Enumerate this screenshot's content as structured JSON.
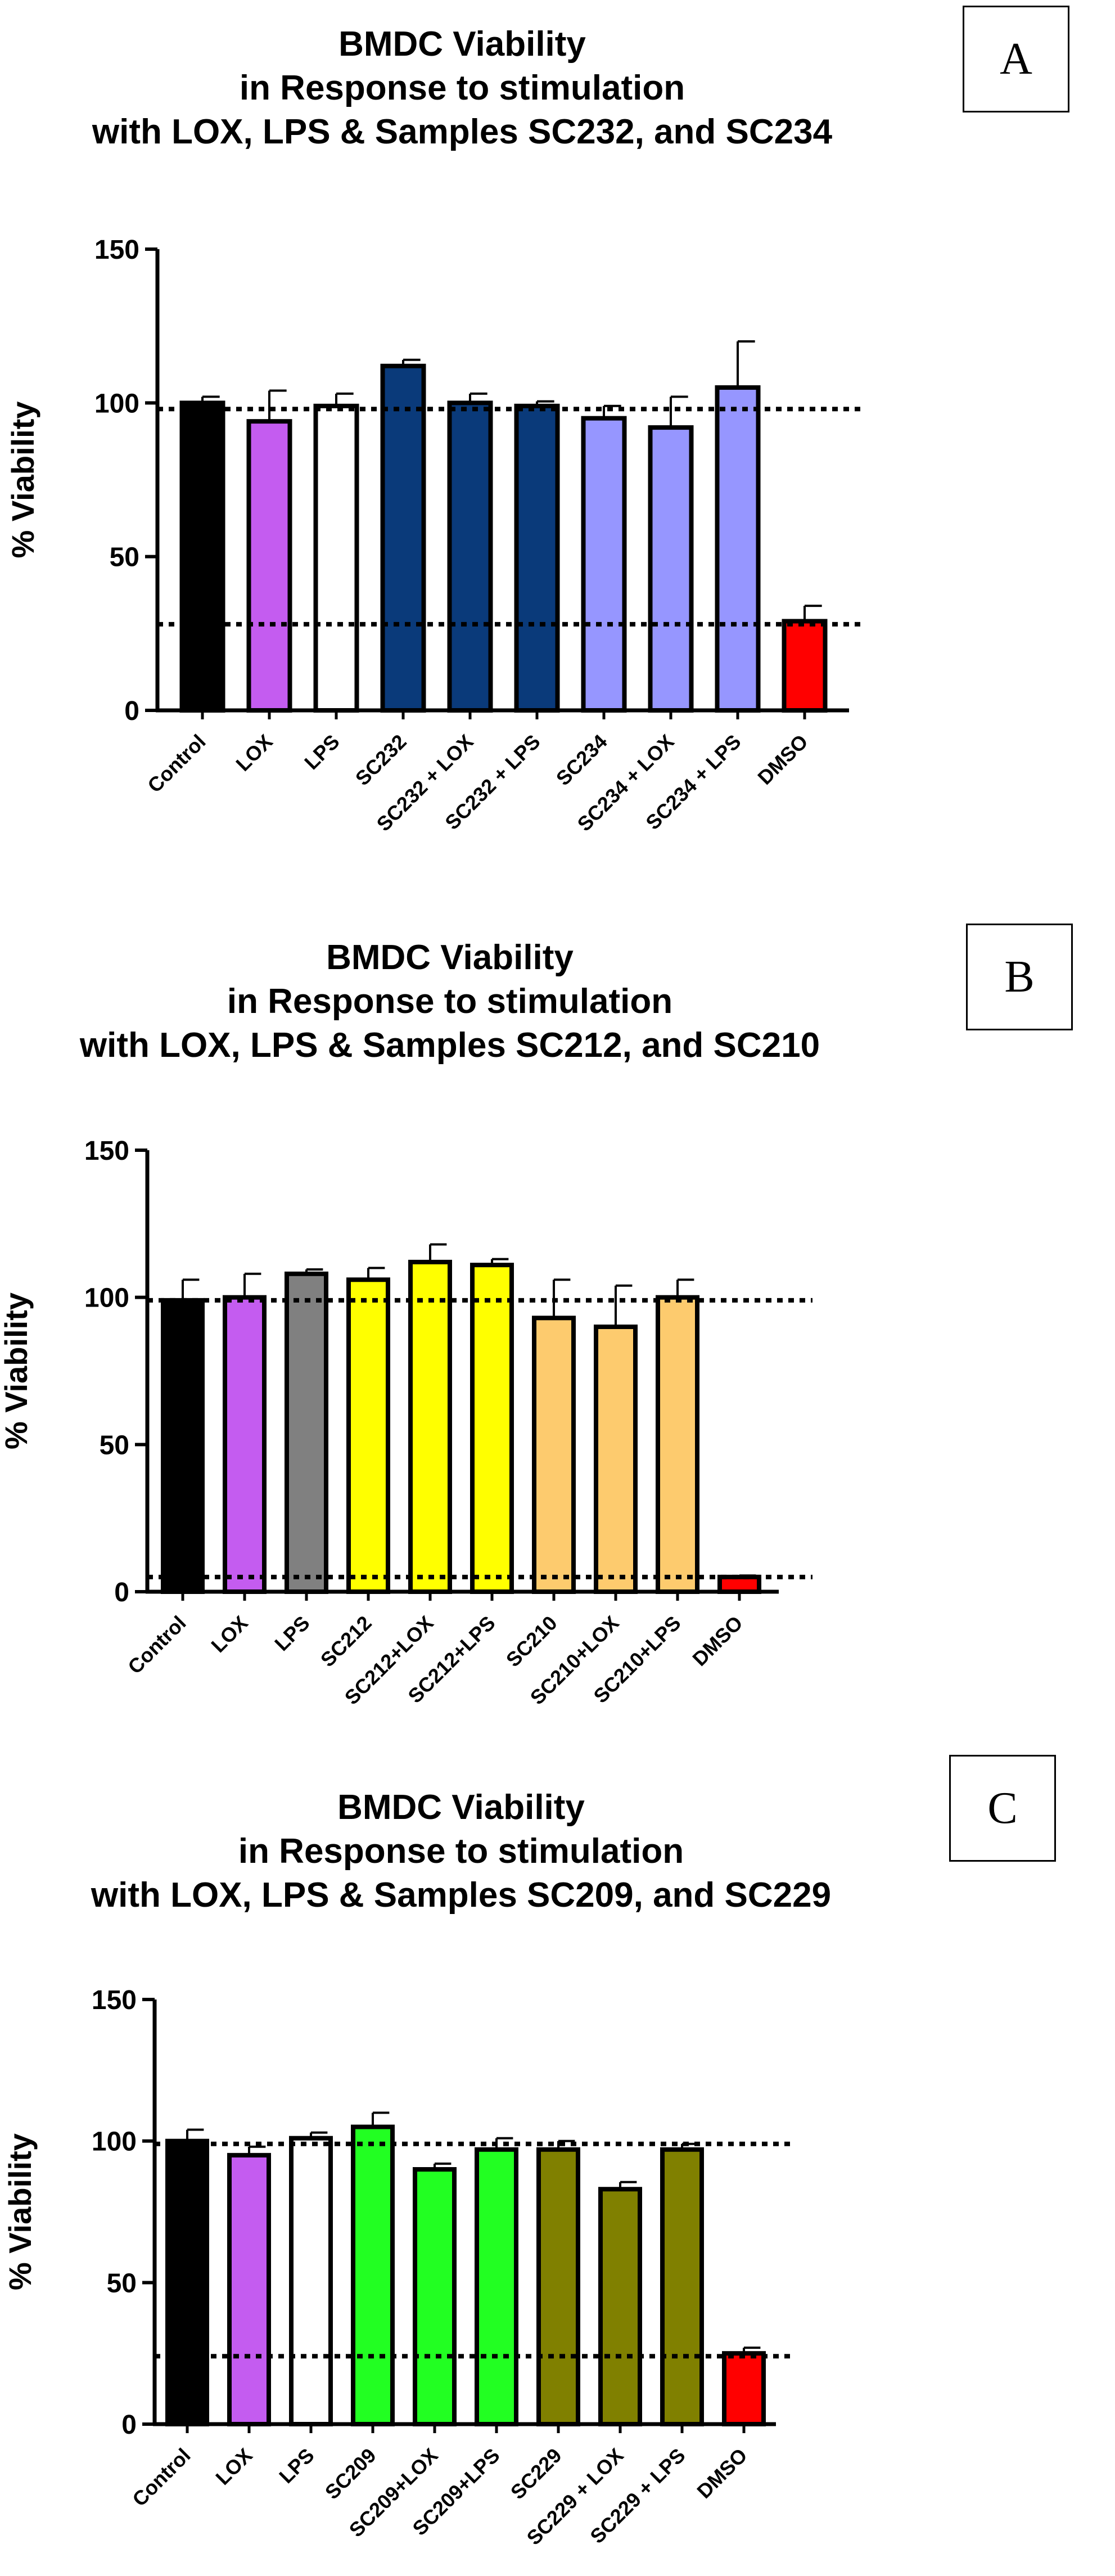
{
  "chart_data": [
    {
      "panel": "A",
      "type": "bar",
      "title_lines": [
        "BMDC Viability",
        "in Response to stimulation",
        "with LOX, LPS & Samples SC232, and SC234"
      ],
      "ylabel": "% Viability",
      "xlabel": "",
      "ylim": [
        0,
        150
      ],
      "yticks": [
        0,
        50,
        100,
        150
      ],
      "reference_lines": [
        98,
        28
      ],
      "categories": [
        "Control",
        "LOX",
        "LPS",
        "SC232",
        "SC232 + LOX",
        "SC232 + LPS",
        "SC234",
        "SC234 + LOX",
        "SC234 + LPS",
        "DMSO"
      ],
      "values": [
        100,
        94,
        99,
        112,
        100,
        99,
        95,
        92,
        105,
        29
      ],
      "errors": [
        2,
        10,
        4,
        2,
        3,
        1.5,
        4,
        10,
        15,
        5
      ],
      "colors": [
        "#000000",
        "#c45cf0",
        "#ffffff",
        "#0a3a7a",
        "#0a3a7a",
        "#0a3a7a",
        "#9696ff",
        "#9696ff",
        "#9696ff",
        "#ff0000"
      ],
      "grid": false,
      "legend": "none"
    },
    {
      "panel": "B",
      "type": "bar",
      "title_lines": [
        "BMDC Viability",
        "in Response to stimulation",
        "with LOX, LPS & Samples SC212, and SC210"
      ],
      "ylabel": "% Viability",
      "xlabel": "",
      "ylim": [
        0,
        150
      ],
      "yticks": [
        0,
        50,
        100,
        150
      ],
      "reference_lines": [
        99,
        5
      ],
      "categories": [
        "Control",
        "LOX",
        "LPS",
        "SC212",
        "SC212+LOX",
        "SC212+LPS",
        "SC210",
        "SC210+LOX",
        "SC210+LPS",
        "DMSO"
      ],
      "values": [
        99,
        100,
        108,
        106,
        112,
        111,
        93,
        90,
        100,
        5
      ],
      "errors": [
        7,
        8,
        1.5,
        4,
        6,
        2,
        13,
        14,
        6,
        0.5
      ],
      "colors": [
        "#000000",
        "#c45cf0",
        "#808080",
        "#ffff00",
        "#ffff00",
        "#ffff00",
        "#fdcb6e",
        "#fdcb6e",
        "#fdcb6e",
        "#ff0000"
      ],
      "grid": false,
      "legend": "none"
    },
    {
      "panel": "C",
      "type": "bar",
      "title_lines": [
        "BMDC Viability",
        "in Response to stimulation",
        "with LOX, LPS & Samples SC209, and SC229"
      ],
      "ylabel": "% Viability",
      "xlabel": "",
      "ylim": [
        0,
        150
      ],
      "yticks": [
        0,
        50,
        100,
        150
      ],
      "reference_lines": [
        99,
        24
      ],
      "categories": [
        "Control",
        "LOX",
        "LPS",
        "SC209",
        "SC209+LOX",
        "SC209+LPS",
        "SC229",
        "SC229  + LOX",
        "SC229  + LPS",
        "DMSO"
      ],
      "values": [
        100,
        95,
        101,
        105,
        90,
        97,
        97,
        83,
        97,
        25
      ],
      "errors": [
        4,
        3,
        2,
        5,
        2,
        4,
        3,
        2.5,
        2,
        2
      ],
      "colors": [
        "#000000",
        "#c45cf0",
        "#ffffff",
        "#22ff22",
        "#22ff22",
        "#22ff22",
        "#808000",
        "#808000",
        "#808000",
        "#ff0000"
      ],
      "grid": false,
      "legend": "none"
    }
  ]
}
